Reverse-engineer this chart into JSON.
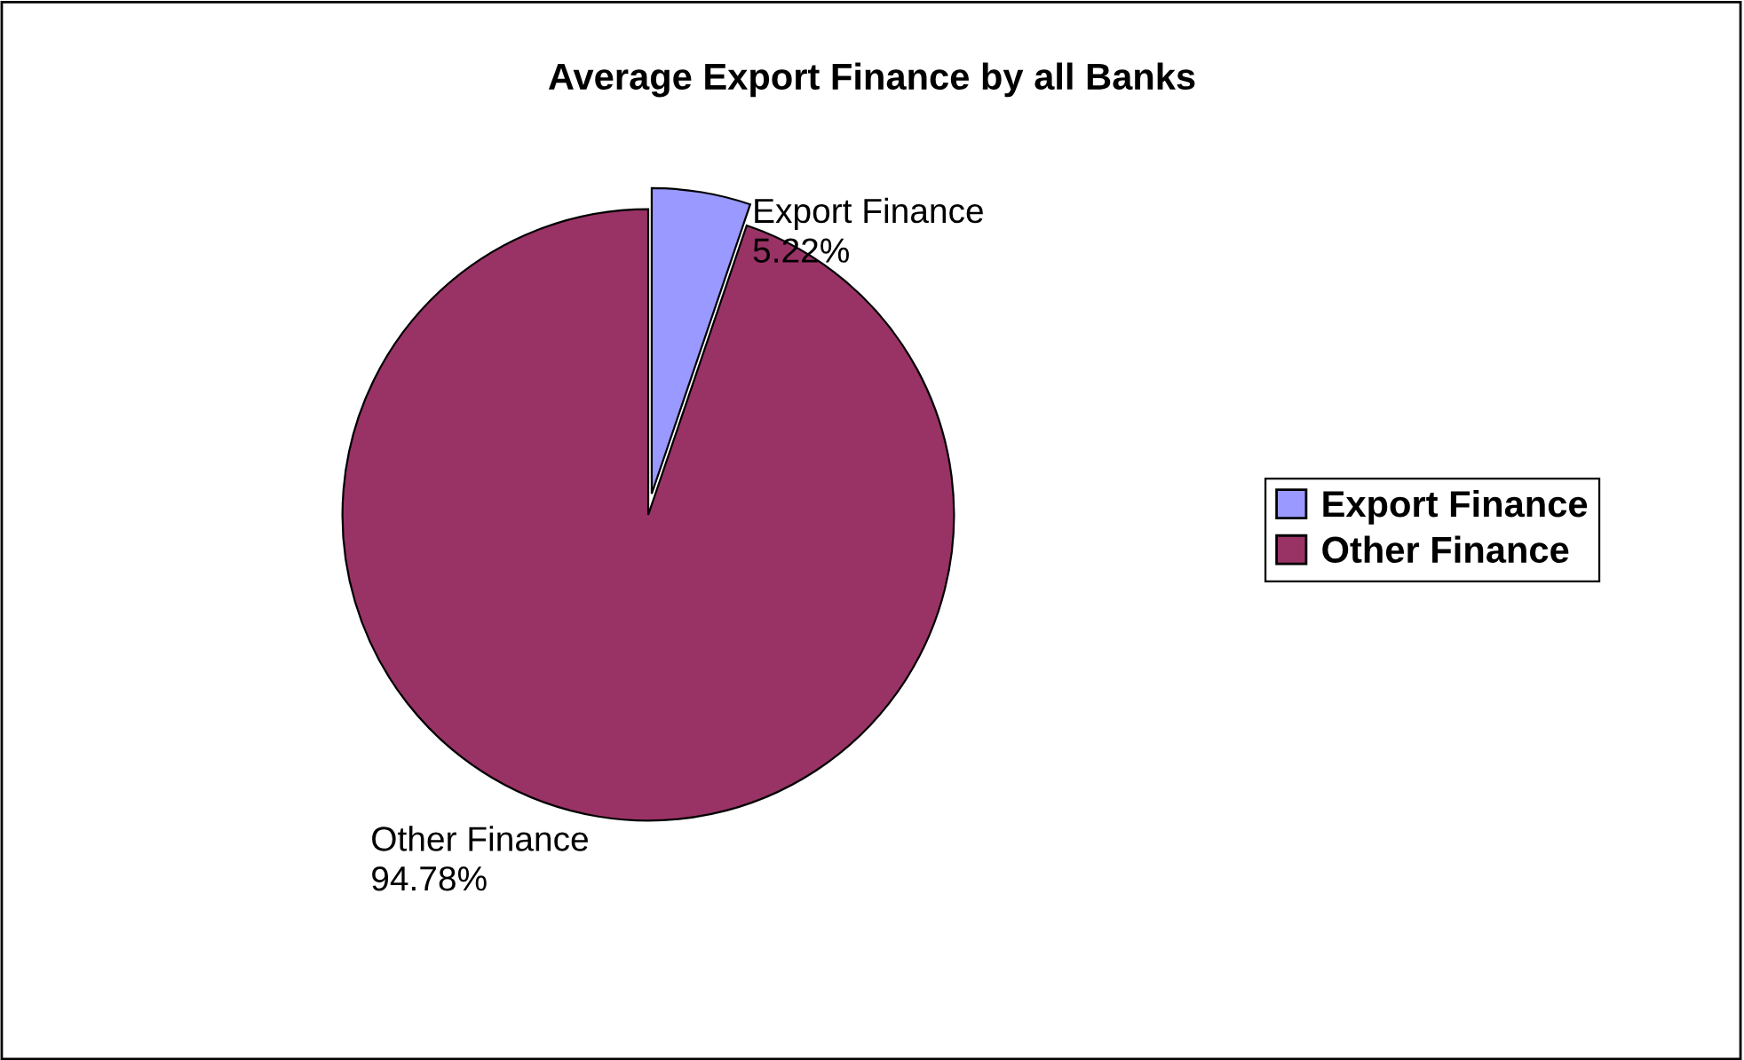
{
  "chart_data": {
    "type": "pie",
    "title": "Average Export Finance by all Banks",
    "categories": [
      "Export Finance",
      "Other Finance"
    ],
    "values": [
      5.22,
      94.78
    ],
    "value_labels": [
      "5.22%",
      "94.78%"
    ],
    "colors": [
      "#9999ff",
      "#993366"
    ],
    "legend": "right"
  }
}
